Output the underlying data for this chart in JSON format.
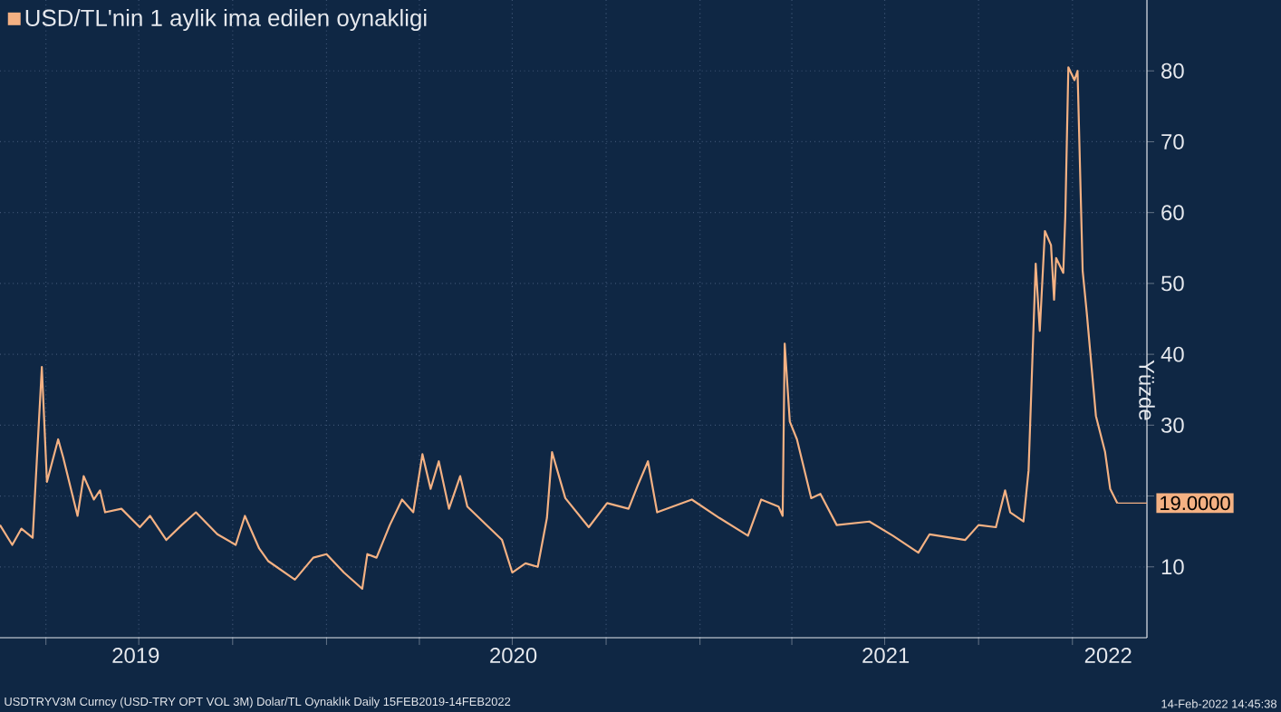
{
  "chart_data": {
    "type": "line",
    "ylabel": "Yüzde",
    "x": [
      "2019-02-15",
      "2019-02-27",
      "2019-03-08",
      "2019-03-19",
      "2019-03-28",
      "2019-04-02",
      "2019-04-13",
      "2019-04-18",
      "2019-05-02",
      "2019-05-08",
      "2019-05-18",
      "2019-05-24",
      "2019-05-29",
      "2019-06-14",
      "2019-07-02",
      "2019-07-12",
      "2019-07-28",
      "2019-08-12",
      "2019-08-26",
      "2019-09-16",
      "2019-10-04",
      "2019-10-13",
      "2019-10-27",
      "2019-11-05",
      "2019-12-01",
      "2019-12-19",
      "2020-01-01",
      "2020-01-18",
      "2020-02-05",
      "2020-02-10",
      "2020-02-19",
      "2020-03-03",
      "2020-03-15",
      "2020-03-26",
      "2020-04-04",
      "2020-04-12",
      "2020-04-20",
      "2020-04-30",
      "2020-05-11",
      "2020-05-18",
      "2020-06-08",
      "2020-06-21",
      "2020-07-01",
      "2020-07-14",
      "2020-07-26",
      "2020-08-04",
      "2020-08-09",
      "2020-08-22",
      "2020-09-14",
      "2020-10-02",
      "2020-10-23",
      "2020-11-01",
      "2020-11-11",
      "2020-11-20",
      "2020-12-24",
      "2021-01-20",
      "2021-02-17",
      "2021-03-02",
      "2021-03-19",
      "2021-03-23",
      "2021-03-25",
      "2021-03-30",
      "2021-04-06",
      "2021-04-20",
      "2021-04-29",
      "2021-05-15",
      "2021-06-16",
      "2021-07-09",
      "2021-08-03",
      "2021-08-14",
      "2021-09-18",
      "2021-10-01",
      "2021-10-18",
      "2021-10-27",
      "2021-11-01",
      "2021-11-14",
      "2021-11-19",
      "2021-11-26",
      "2021-11-30",
      "2021-12-05",
      "2021-12-11",
      "2021-12-14",
      "2021-12-16",
      "2021-12-23",
      "2021-12-25",
      "2021-12-28",
      "2022-01-03",
      "2022-01-06",
      "2022-01-11",
      "2022-01-15",
      "2022-01-24",
      "2022-02-02",
      "2022-02-07",
      "2022-02-14"
    ],
    "series": [
      {
        "name": "USD/TL'nin 1 aylik ima edilen oynakligi",
        "color": "#f4b183",
        "values": [
          15.9,
          13.1,
          15.4,
          14.1,
          38.2,
          22,
          28,
          25.4,
          17.2,
          22.8,
          19.5,
          20.8,
          17.7,
          18.2,
          15.6,
          17.2,
          13.8,
          15.9,
          17.7,
          14.6,
          13.1,
          17.2,
          12.6,
          10.8,
          8.2,
          11.3,
          11.8,
          9.2,
          6.9,
          11.8,
          11.3,
          15.9,
          19.5,
          17.7,
          25.9,
          21,
          24.9,
          18.2,
          22.8,
          18.5,
          15.6,
          13.8,
          9.2,
          10.5,
          10,
          16.9,
          26.2,
          19.7,
          15.6,
          19,
          18.2,
          21.5,
          24.9,
          17.7,
          19.5,
          16.9,
          14.4,
          19.5,
          18.5,
          17.2,
          41.5,
          30.5,
          28,
          19.7,
          20.3,
          15.9,
          16.4,
          14.4,
          12,
          14.6,
          13.8,
          15.9,
          15.6,
          20.8,
          17.7,
          16.4,
          23.6,
          52.8,
          43.3,
          57.4,
          55.4,
          47.7,
          53.6,
          51.5,
          59.5,
          80.5,
          78.7,
          80,
          51.8,
          45.9,
          31.3,
          26.2,
          21,
          19
        ]
      }
    ],
    "xlim": [
      "2019-02-15",
      "2022-03-15"
    ],
    "xticks": [
      {
        "value": "2019-04-01",
        "label": null
      },
      {
        "value": "2019-07-01",
        "label": null
      },
      {
        "value": "2019-10-01",
        "label": null
      },
      {
        "value": "2020-01-01",
        "label": null
      },
      {
        "value": "2020-04-01",
        "label": null
      },
      {
        "value": "2020-07-01",
        "label": null
      },
      {
        "value": "2020-10-01",
        "label": null
      },
      {
        "value": "2021-01-01",
        "label": null
      },
      {
        "value": "2021-04-01",
        "label": null
      },
      {
        "value": "2021-07-01",
        "label": null
      },
      {
        "value": "2021-10-01",
        "label": null
      },
      {
        "value": "2022-01-01",
        "label": null
      },
      {
        "value": "2019-06-28",
        "label": "2019"
      },
      {
        "value": "2020-07-02",
        "label": "2020"
      },
      {
        "value": "2021-07-02",
        "label": "2021"
      },
      {
        "value": "2022-02-05",
        "label": "2022"
      }
    ],
    "ylim": [
      0,
      90
    ],
    "yticks": [
      10,
      {
        "value": 20,
        "label": null
      },
      30,
      40,
      50,
      60,
      70,
      80
    ],
    "grid": true,
    "legend": "top left",
    "marker": "none",
    "line_style": "solid",
    "annotations": [
      {
        "text": "19.0000",
        "x": "2022-02-14",
        "y": 19
      },
      "USDTRYV3M Curncy (USD-TRY OPT VOL 3M) Dolar/TL Oynaklık  Daily 15FEB2019-14FEB2022",
      "14-Feb-2022 14:45:38"
    ]
  }
}
